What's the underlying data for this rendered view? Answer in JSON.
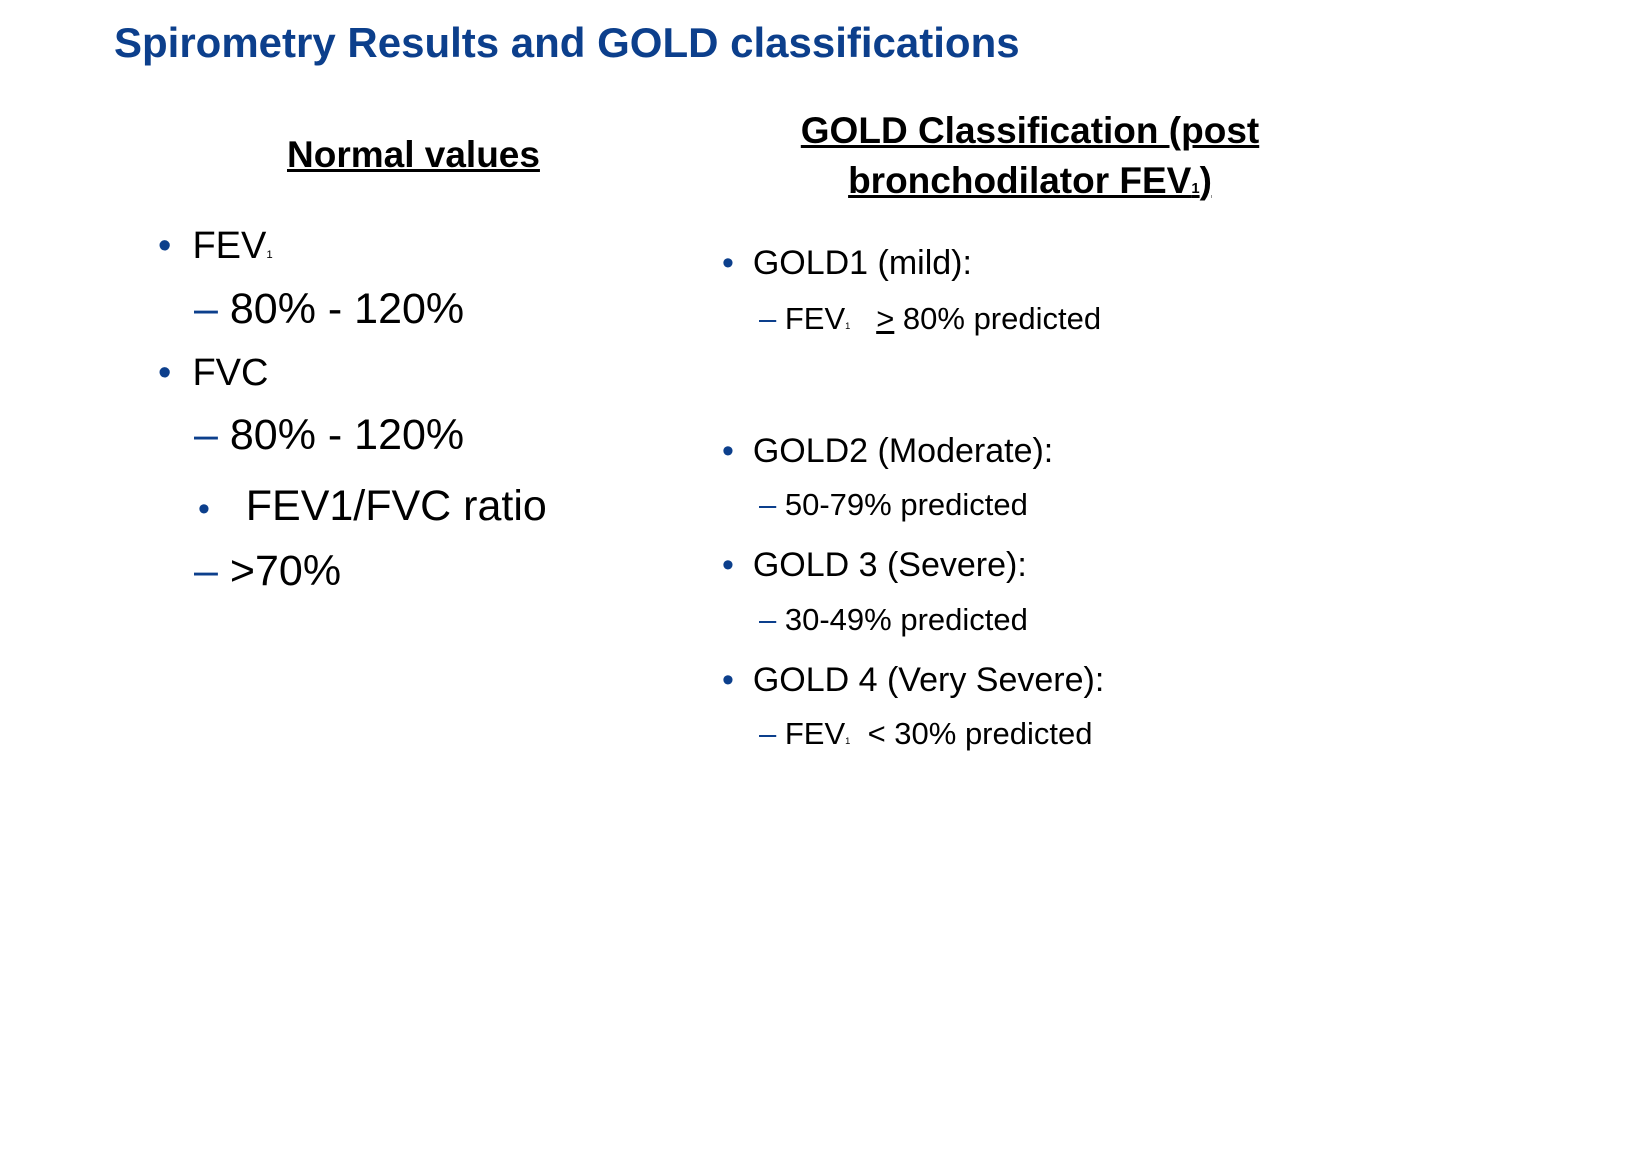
{
  "title": "Spirometry Results and GOLD classifications",
  "left": {
    "heading": "Normal values",
    "fev1": {
      "label": "FEV",
      "sub": "1",
      "range": "80% - 120%"
    },
    "fvc": {
      "label": "FVC",
      "range": "80% - 120%"
    },
    "ratio": {
      "label": "FEV1/FVC ratio",
      "value": ">70%"
    }
  },
  "right": {
    "heading_line1": "GOLD Classification (post",
    "heading_line2": "bronchodilator FEV",
    "heading_sub": "1",
    "heading_close": ")",
    "gold1": {
      "label": "GOLD1 (mild):",
      "fev": "FEV",
      "sub": "1",
      "ge": ">",
      "rest": " 80% predicted"
    },
    "gold2": {
      "label": "GOLD2 (Moderate):",
      "detail": "50-79% predicted"
    },
    "gold3": {
      "label": "GOLD 3 (Severe):",
      "detail": "30-49% predicted"
    },
    "gold4": {
      "label": "GOLD 4 (Very Severe):",
      "fev": "FEV",
      "sub": "1",
      "rest": "  < 30% predicted"
    }
  },
  "colors": {
    "accent": "#0c3f8c"
  }
}
